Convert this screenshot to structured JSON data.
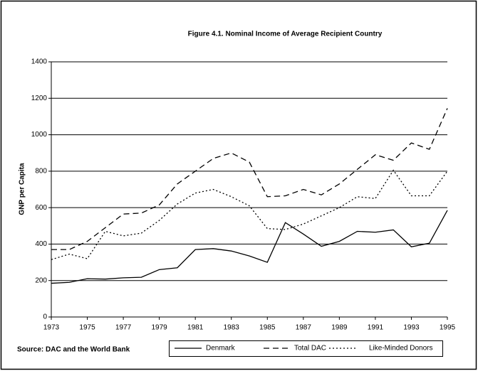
{
  "chart_data": {
    "type": "line",
    "title": "Figure 4.1.  Nominal Income of Average Recipient Country",
    "y_label": "GNP per Capita",
    "source": "Source: DAC and the World Bank",
    "x": [
      1973,
      1974,
      1975,
      1976,
      1977,
      1978,
      1979,
      1980,
      1981,
      1982,
      1983,
      1984,
      1985,
      1986,
      1987,
      1988,
      1989,
      1990,
      1991,
      1992,
      1993,
      1994,
      1995
    ],
    "xlim": [
      1973,
      1995
    ],
    "xticks": [
      1973,
      1975,
      1977,
      1979,
      1981,
      1983,
      1985,
      1987,
      1989,
      1991,
      1993,
      1995
    ],
    "ylim": [
      0,
      1400
    ],
    "yticks": [
      0,
      200,
      400,
      600,
      800,
      1000,
      1200,
      1400
    ],
    "grid": true,
    "legend": "bottom",
    "series": [
      {
        "name": "Denmark",
        "color": "#000000",
        "style": "solid",
        "values": [
          185,
          190,
          210,
          208,
          215,
          218,
          260,
          270,
          370,
          375,
          362,
          335,
          300,
          518,
          455,
          388,
          415,
          470,
          465,
          478,
          385,
          405,
          585
        ]
      },
      {
        "name": "Total DAC",
        "color": "#000000",
        "style": "dashed",
        "values": [
          370,
          370,
          415,
          490,
          565,
          570,
          615,
          730,
          800,
          870,
          900,
          850,
          660,
          665,
          700,
          670,
          730,
          810,
          890,
          860,
          955,
          920,
          1145
        ]
      },
      {
        "name": "Like-Minded Donors",
        "color": "#000000",
        "style": "dotted",
        "values": [
          315,
          345,
          320,
          470,
          445,
          460,
          530,
          620,
          680,
          700,
          660,
          610,
          485,
          480,
          510,
          555,
          600,
          660,
          650,
          805,
          665,
          665,
          800
        ]
      }
    ]
  }
}
